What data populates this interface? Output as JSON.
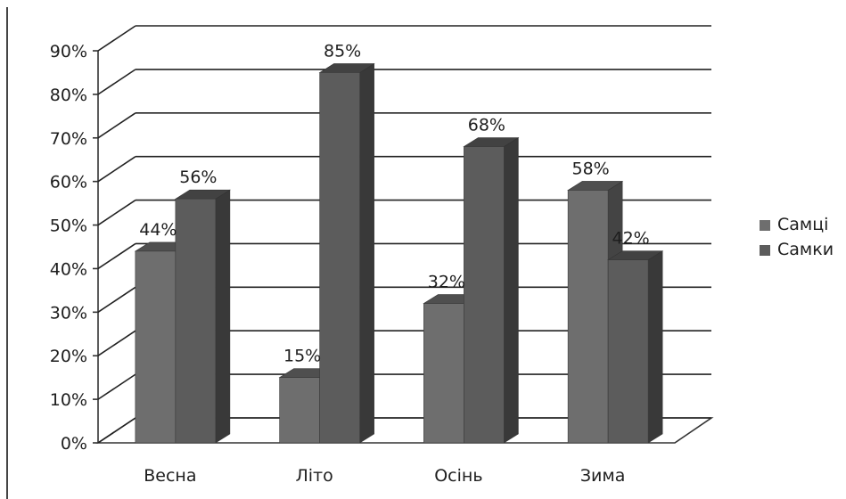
{
  "chart_data": {
    "type": "bar",
    "categories": [
      "Весна",
      "Літо",
      "Осінь",
      "Зима"
    ],
    "series": [
      {
        "name": "Самці",
        "values": [
          44,
          15,
          32,
          58
        ],
        "color": "#6e6e6e",
        "labels": [
          "44%",
          "15%",
          "32%",
          "58%"
        ]
      },
      {
        "name": "Самки",
        "values": [
          56,
          85,
          68,
          42
        ],
        "color": "#5c5c5c",
        "labels": [
          "56%",
          "85%",
          "68%",
          "42%"
        ]
      }
    ],
    "ylim": [
      0,
      90
    ],
    "yticks": [
      0,
      10,
      20,
      30,
      40,
      50,
      60,
      70,
      80,
      90
    ],
    "ytick_labels": [
      "0%",
      "10%",
      "20%",
      "30%",
      "40%",
      "50%",
      "60%",
      "70%",
      "80%",
      "90%"
    ],
    "grid": true,
    "style": "3d-clustered-column",
    "legend_position": "right"
  }
}
